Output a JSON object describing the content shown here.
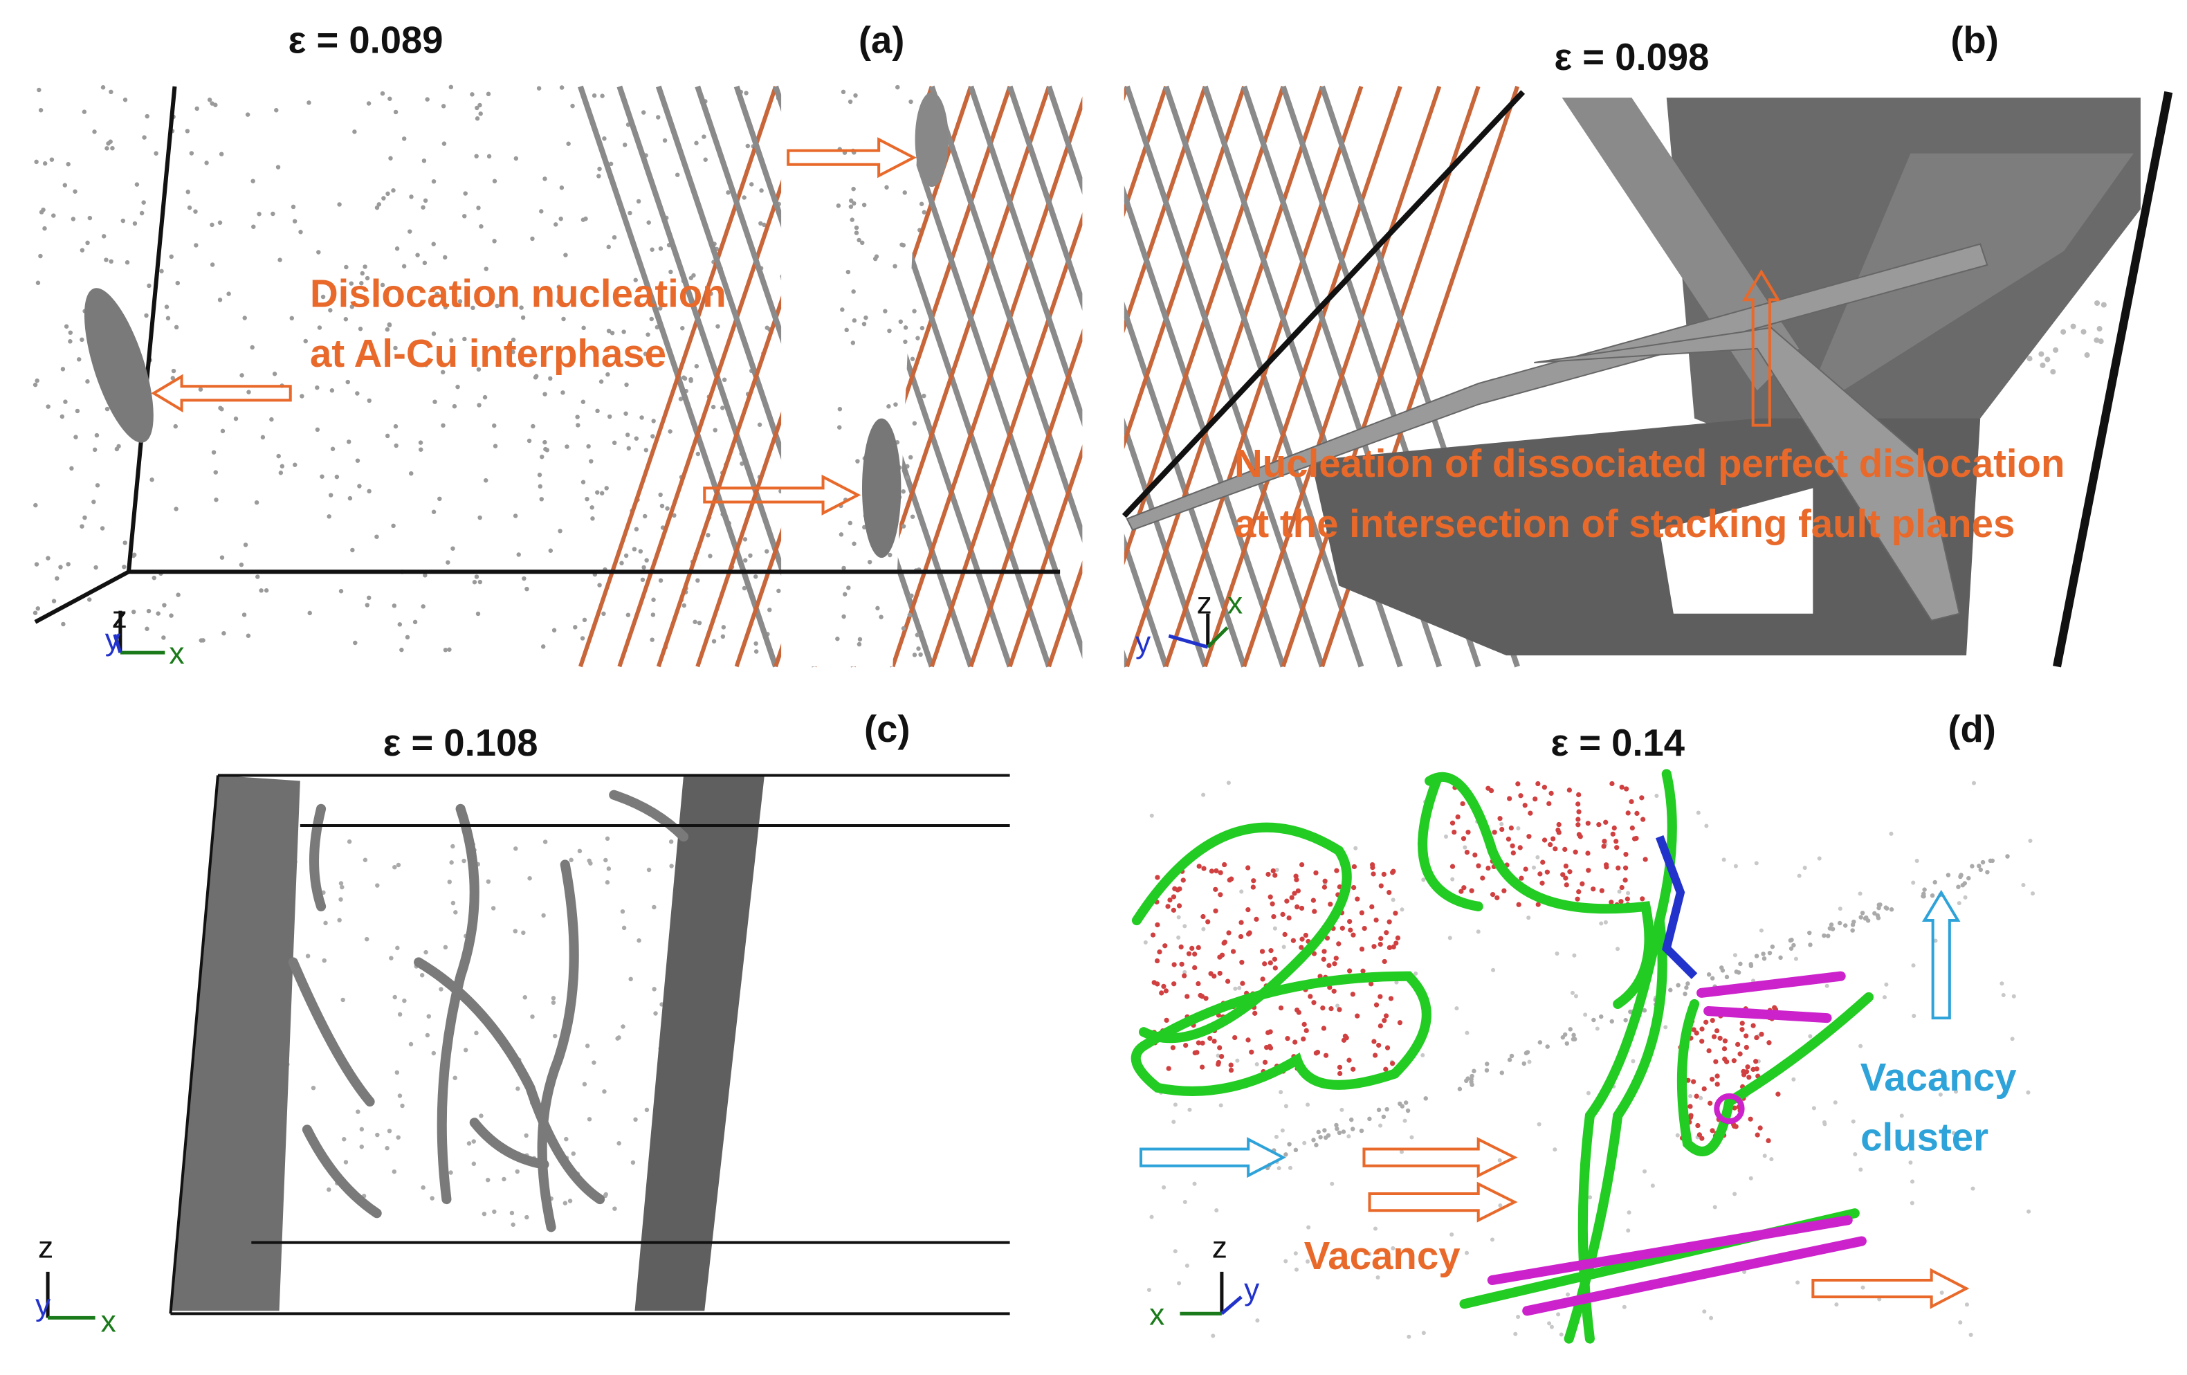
{
  "panels": [
    {
      "label": "(a)",
      "strain": "ε = 0.089",
      "annotation": [
        "Dislocation nucleation",
        "at Al-Cu interphase"
      ],
      "axes": {
        "z": "z",
        "y": "y",
        "x": "x"
      }
    },
    {
      "label": "(b)",
      "strain": "ε = 0.098",
      "annotation": [
        "Nucleation of dissociated perfect dislocation",
        "at the intersection of stacking fault planes"
      ],
      "axes": {
        "z": "z",
        "x": "x",
        "y": "y"
      }
    },
    {
      "label": "(c)",
      "strain": "ε = 0.108",
      "axes": {
        "z": "z",
        "y": "y",
        "x": "x"
      }
    },
    {
      "label": "(d)",
      "strain": "ε = 0.14",
      "annotation": {
        "vacancy_cluster": [
          "Vacancy",
          "cluster"
        ],
        "vacancy": "Vacancy"
      },
      "axes": {
        "z": "z",
        "y": "y",
        "x": "x"
      }
    }
  ]
}
